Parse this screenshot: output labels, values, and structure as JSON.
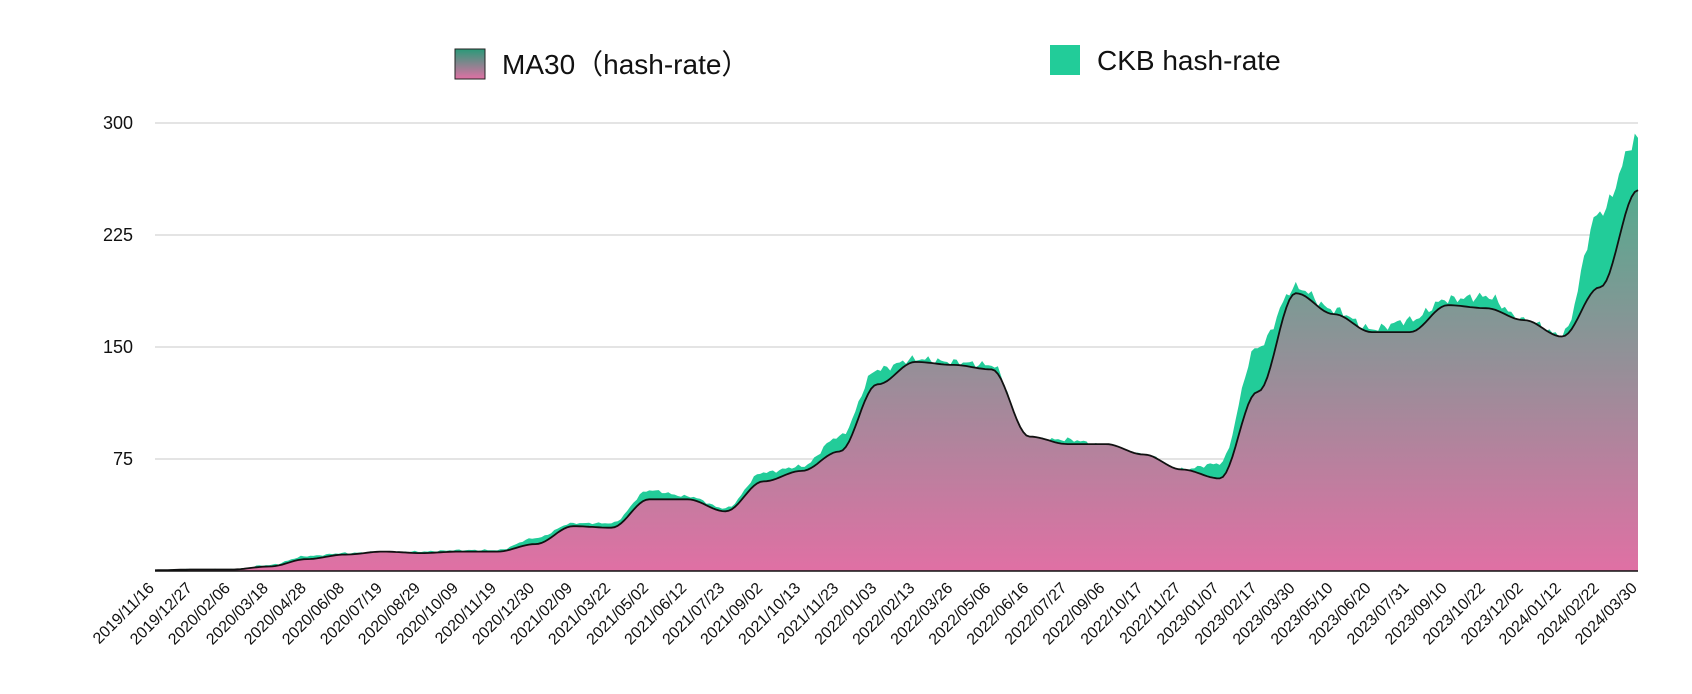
{
  "chart_data": {
    "type": "area",
    "title": "",
    "xlabel": "",
    "ylabel": "",
    "ylim": [
      0,
      300
    ],
    "yticks": [
      "75",
      "150",
      "225",
      "300"
    ],
    "grid": true,
    "legend_position": "top",
    "x": [
      "2019/11/16",
      "2019/12/27",
      "2020/02/06",
      "2020/03/18",
      "2020/04/28",
      "2020/06/08",
      "2020/07/19",
      "2020/08/29",
      "2020/10/09",
      "2020/11/19",
      "2020/12/30",
      "2021/02/09",
      "2021/03/22",
      "2021/05/02",
      "2021/06/12",
      "2021/07/23",
      "2021/09/02",
      "2021/10/13",
      "2021/11/23",
      "2022/01/03",
      "2022/02/13",
      "2022/03/26",
      "2022/05/06",
      "2022/06/16",
      "2022/07/27",
      "2022/09/06",
      "2022/10/17",
      "2022/11/27",
      "2023/01/07",
      "2023/02/17",
      "2023/03/30",
      "2023/05/10",
      "2023/06/20",
      "2023/07/31",
      "2023/09/10",
      "2023/10/22",
      "2023/12/02",
      "2024/01/12",
      "2024/02/22",
      "2024/03/30"
    ],
    "series": [
      {
        "name": "CKB hash-rate",
        "color": "#22CC99",
        "values": [
          0.5,
          1,
          1,
          4,
          10,
          12,
          13,
          13,
          14,
          14,
          22,
          32,
          32,
          54,
          50,
          42,
          66,
          70,
          90,
          135,
          142,
          140,
          138,
          88,
          88,
          84,
          78,
          68,
          72,
          150,
          190,
          175,
          162,
          168,
          182,
          184,
          168,
          158,
          240,
          290
        ]
      },
      {
        "name": "MA30（hash-rate）",
        "color": "#DD77AA",
        "values": [
          0.5,
          1,
          1,
          3,
          8,
          11,
          13,
          12,
          13,
          13,
          18,
          30,
          29,
          48,
          48,
          40,
          60,
          67,
          80,
          125,
          140,
          138,
          135,
          90,
          85,
          85,
          78,
          68,
          62,
          120,
          186,
          172,
          160,
          160,
          178,
          176,
          168,
          157,
          190,
          255
        ]
      }
    ]
  }
}
